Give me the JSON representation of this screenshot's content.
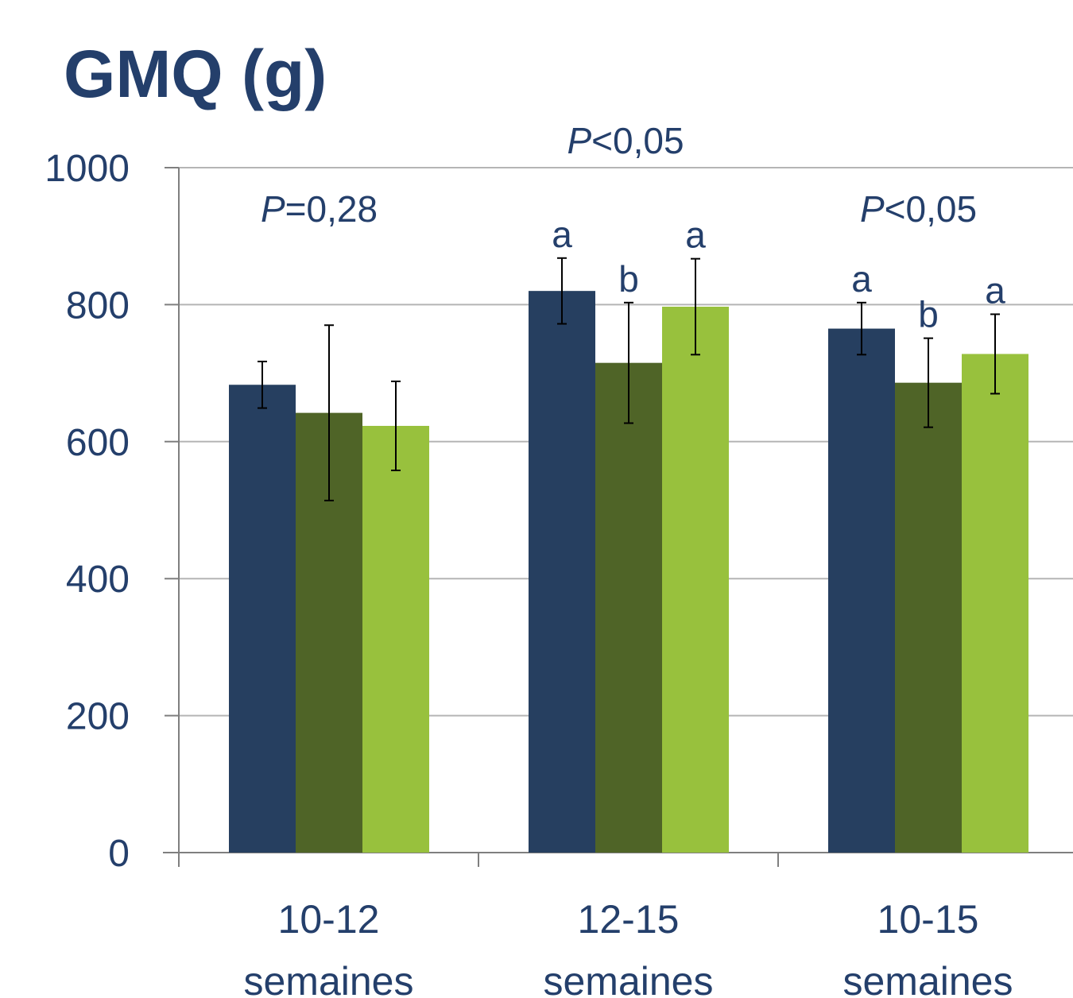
{
  "chart_data": {
    "type": "bar",
    "title": "GMQ (g)",
    "categories": [
      [
        "10-12",
        "semaines"
      ],
      [
        "12-15",
        "semaines"
      ],
      [
        "10-15",
        "semaines"
      ]
    ],
    "ylim": [
      0,
      1000
    ],
    "yticks": [
      0,
      200,
      400,
      600,
      800,
      1000
    ],
    "grid": true,
    "legend": "none",
    "series": [
      {
        "color": "#263f60",
        "values": [
          683,
          820,
          765
        ],
        "errors": [
          34,
          48,
          38
        ],
        "letters": [
          "",
          "a",
          "a"
        ]
      },
      {
        "color": "#4f6427",
        "values": [
          642,
          715,
          686
        ],
        "errors": [
          128,
          88,
          65
        ],
        "letters": [
          "",
          "b",
          "b"
        ]
      },
      {
        "color": "#98c13d",
        "values": [
          623,
          797,
          728
        ],
        "errors": [
          65,
          70,
          58
        ],
        "letters": [
          "",
          "a",
          "a"
        ]
      }
    ],
    "annotations": [
      {
        "group": 0,
        "italic": "P",
        "rest": "=0,28"
      },
      {
        "group": "top",
        "italic": "P",
        "rest": "<0,05"
      },
      {
        "group": 2,
        "italic": "P",
        "rest": "<0,05"
      }
    ],
    "colors": {
      "text": "#243f6b",
      "grid": "#b5b5b5",
      "axis": "#7f7f7f",
      "error_bar": "#000000"
    }
  }
}
